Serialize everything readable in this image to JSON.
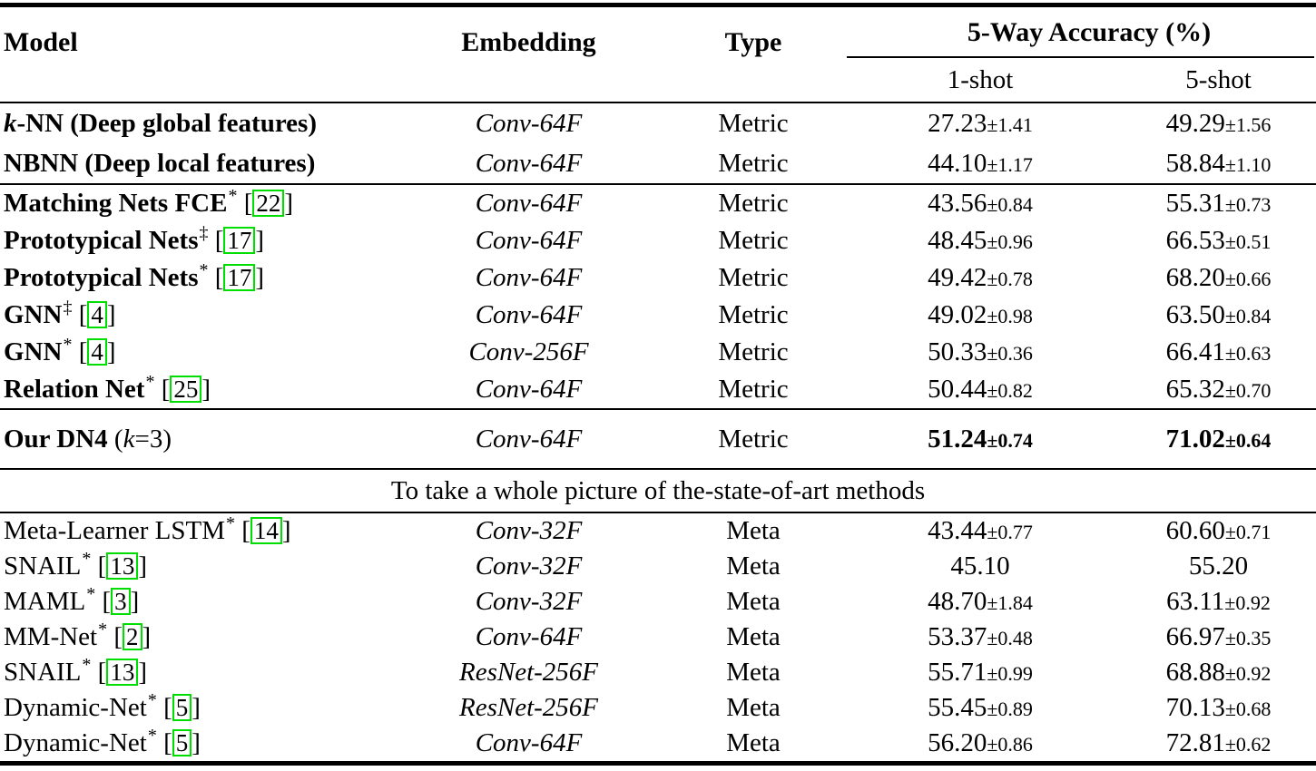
{
  "pm": "±",
  "citation_box_color": "#00dd00",
  "header": {
    "model": "Model",
    "embedding": "Embedding",
    "type": "Type",
    "accuracy_group": "5-Way Accuracy (%)",
    "shot1": "1-shot",
    "shot5": "5-shot"
  },
  "sections": [
    {
      "kind": "rows",
      "bold_model": true,
      "rows": [
        {
          "model": [
            {
              "t": "k",
              "i": true
            },
            {
              "t": "-NN (Deep global features)"
            }
          ],
          "sup": "",
          "cite": "",
          "embedding": "Conv-64F",
          "type": "Metric",
          "shot1": {
            "val": "27.23",
            "err": "1.41"
          },
          "shot5": {
            "val": "49.29",
            "err": "1.56"
          }
        },
        {
          "model": [
            {
              "t": "NBNN (Deep local features)"
            }
          ],
          "sup": "",
          "cite": "",
          "embedding": "Conv-64F",
          "type": "Metric",
          "shot1": {
            "val": "44.10",
            "err": "1.17"
          },
          "shot5": {
            "val": "58.84",
            "err": "1.10"
          }
        }
      ]
    },
    {
      "kind": "rows",
      "bold_model": true,
      "rows": [
        {
          "model": [
            {
              "t": "Matching Nets FCE"
            }
          ],
          "sup": "*",
          "cite": "22",
          "embedding": "Conv-64F",
          "type": "Metric",
          "shot1": {
            "val": "43.56",
            "err": "0.84"
          },
          "shot5": {
            "val": "55.31",
            "err": "0.73"
          }
        },
        {
          "model": [
            {
              "t": "Prototypical Nets"
            }
          ],
          "sup": "‡",
          "cite": "17",
          "embedding": "Conv-64F",
          "type": "Metric",
          "shot1": {
            "val": "48.45",
            "err": "0.96"
          },
          "shot5": {
            "val": "66.53",
            "err": "0.51"
          }
        },
        {
          "model": [
            {
              "t": "Prototypical Nets"
            }
          ],
          "sup": "*",
          "cite": "17",
          "embedding": "Conv-64F",
          "type": "Metric",
          "shot1": {
            "val": "49.42",
            "err": "0.78"
          },
          "shot5": {
            "val": "68.20",
            "err": "0.66"
          }
        },
        {
          "model": [
            {
              "t": "GNN"
            }
          ],
          "sup": "‡",
          "cite": "4",
          "embedding": "Conv-64F",
          "type": "Metric",
          "shot1": {
            "val": "49.02",
            "err": "0.98"
          },
          "shot5": {
            "val": "63.50",
            "err": "0.84"
          }
        },
        {
          "model": [
            {
              "t": "GNN"
            }
          ],
          "sup": "*",
          "cite": "4",
          "embedding": "Conv-256F",
          "type": "Metric",
          "shot1": {
            "val": "50.33",
            "err": "0.36"
          },
          "shot5": {
            "val": "66.41",
            "err": "0.63"
          }
        },
        {
          "model": [
            {
              "t": "Relation Net"
            }
          ],
          "sup": "*",
          "cite": "25",
          "embedding": "Conv-64F",
          "type": "Metric",
          "shot1": {
            "val": "50.44",
            "err": "0.82"
          },
          "shot5": {
            "val": "65.32",
            "err": "0.70"
          }
        }
      ]
    },
    {
      "kind": "rows",
      "bold_model": false,
      "rows": [
        {
          "model": [
            {
              "t": "Our DN4",
              "b": true
            },
            {
              "t": " ("
            },
            {
              "t": "k",
              "i": true
            },
            {
              "t": "=3)"
            }
          ],
          "sup": "",
          "cite": "",
          "bold_vals": true,
          "embedding": "Conv-64F",
          "type": "Metric",
          "shot1": {
            "val": "51.24",
            "err": "0.74"
          },
          "shot5": {
            "val": "71.02",
            "err": "0.64"
          }
        }
      ]
    },
    {
      "kind": "banner",
      "text": "To take a whole picture of the-state-of-art methods"
    },
    {
      "kind": "rows",
      "bold_model": false,
      "rows": [
        {
          "model": [
            {
              "t": "Meta-Learner LSTM"
            }
          ],
          "sup": "*",
          "cite": "14",
          "embedding": "Conv-32F",
          "type": "Meta",
          "shot1": {
            "val": "43.44",
            "err": "0.77"
          },
          "shot5": {
            "val": "60.60",
            "err": "0.71"
          }
        },
        {
          "model": [
            {
              "t": "SNAIL"
            }
          ],
          "sup": "*",
          "cite": "13",
          "embedding": "Conv-32F",
          "type": "Meta",
          "shot1": {
            "val": "45.10",
            "err": ""
          },
          "shot5": {
            "val": "55.20",
            "err": ""
          }
        },
        {
          "model": [
            {
              "t": "MAML"
            }
          ],
          "sup": "*",
          "cite": "3",
          "embedding": "Conv-32F",
          "type": "Meta",
          "shot1": {
            "val": "48.70",
            "err": "1.84"
          },
          "shot5": {
            "val": "63.11",
            "err": "0.92"
          }
        },
        {
          "model": [
            {
              "t": "MM-Net"
            }
          ],
          "sup": "*",
          "cite": "2",
          "embedding": "Conv-64F",
          "type": "Meta",
          "shot1": {
            "val": "53.37",
            "err": "0.48"
          },
          "shot5": {
            "val": "66.97",
            "err": "0.35"
          }
        },
        {
          "model": [
            {
              "t": "SNAIL"
            }
          ],
          "sup": "*",
          "cite": "13",
          "embedding": "ResNet-256F",
          "type": "Meta",
          "shot1": {
            "val": "55.71",
            "err": "0.99"
          },
          "shot5": {
            "val": "68.88",
            "err": "0.92"
          }
        },
        {
          "model": [
            {
              "t": "Dynamic-Net"
            }
          ],
          "sup": "*",
          "cite": "5",
          "embedding": "ResNet-256F",
          "type": "Meta",
          "shot1": {
            "val": "55.45",
            "err": "0.89"
          },
          "shot5": {
            "val": "70.13",
            "err": "0.68"
          }
        },
        {
          "model": [
            {
              "t": "Dynamic-Net"
            }
          ],
          "sup": "*",
          "cite": "5",
          "embedding": "Conv-64F",
          "type": "Meta",
          "shot1": {
            "val": "56.20",
            "err": "0.86"
          },
          "shot5": {
            "val": "72.81",
            "err": "0.62"
          }
        }
      ]
    }
  ]
}
